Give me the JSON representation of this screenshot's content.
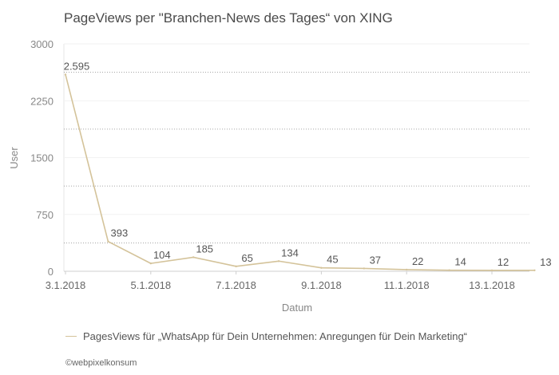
{
  "chart_data": {
    "type": "line",
    "title": "PageViews per \"Branchen-News des Tages“ von XING",
    "xlabel": "Datum",
    "ylabel": "User",
    "ylim": [
      0,
      3000
    ],
    "yticks": [
      "0",
      "750",
      "1500",
      "2250",
      "3000"
    ],
    "ytick_values": [
      0,
      750,
      1500,
      2250,
      3000
    ],
    "x": [
      "3.1.2018",
      "4.1.2018",
      "5.1.2018",
      "6.1.2018",
      "7.1.2018",
      "8.1.2018",
      "9.1.2018",
      "10.1.2018",
      "11.1.2018",
      "12.1.2018",
      "13.1.2018",
      "14.1.2018"
    ],
    "xtick_labels": [
      "3.1.2018",
      "",
      "5.1.2018",
      "",
      "7.1.2018",
      "",
      "9.1.2018",
      "",
      "11.1.2018",
      "",
      "13.1.2018",
      ""
    ],
    "series": [
      {
        "name": "PagesViews für „WhatsApp für Dein Unternehmen: Anregungen für Dein Marketing“",
        "values": [
          2595,
          393,
          104,
          185,
          65,
          134,
          45,
          37,
          22,
          14,
          12,
          13
        ],
        "value_labels": [
          "2.595",
          "393",
          "104",
          "185",
          "65",
          "134",
          "45",
          "37",
          "22",
          "14",
          "12",
          "13"
        ],
        "color": "#d4c39a"
      }
    ],
    "grid": true,
    "legend_position": "bottom-left"
  },
  "credit": "©webpixelkonsum"
}
